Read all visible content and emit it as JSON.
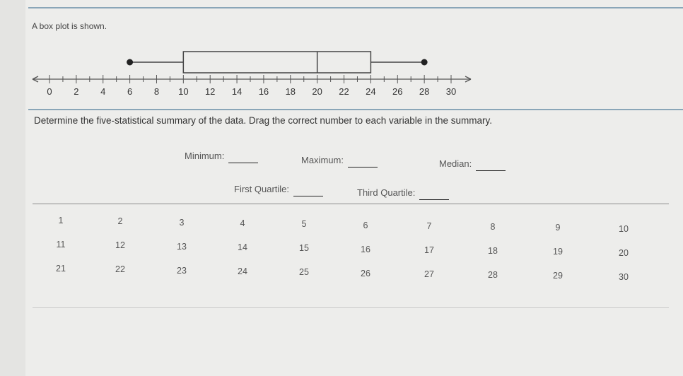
{
  "prompt": "A box plot is shown.",
  "instruction": "Determine the five-statistical summary of the data. Drag the correct number to each variable in the summary.",
  "summary_slots": {
    "minimum": "Minimum:",
    "maximum": "Maximum:",
    "median": "Median:",
    "first_quartile": "First Quartile:",
    "third_quartile": "Third Quartile:"
  },
  "number_bank": [
    [
      1,
      2,
      3,
      4,
      5,
      6,
      7,
      8,
      9,
      10
    ],
    [
      11,
      12,
      13,
      14,
      15,
      16,
      17,
      18,
      19,
      20
    ],
    [
      21,
      22,
      23,
      24,
      25,
      26,
      27,
      28,
      29,
      30
    ]
  ],
  "chart_data": {
    "type": "boxplot",
    "axis": {
      "min": 0,
      "max": 30,
      "minor_step": 1,
      "tick_labels": [
        "0",
        "2",
        "4",
        "6",
        "8",
        "10",
        "12",
        "14",
        "16",
        "18",
        "20",
        "22",
        "24",
        "26",
        "28",
        "30"
      ],
      "arrows_both_ends": true
    },
    "min": 6,
    "q1": 10,
    "median": 20,
    "q3": 24,
    "max": 28
  }
}
